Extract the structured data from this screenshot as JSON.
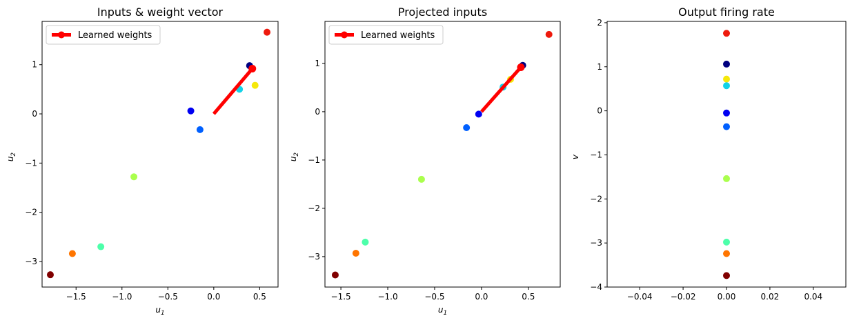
{
  "chart_data": [
    {
      "type": "scatter",
      "title": "Inputs & weight vector",
      "xlabel": "u_1",
      "ylabel": "u_2",
      "xlim": [
        -1.87,
        0.7
      ],
      "ylim": [
        -3.52,
        1.88
      ],
      "xticks": [
        -1.5,
        -1.0,
        -0.5,
        0.0,
        0.5
      ],
      "xtick_labels": [
        "−1.5",
        "−1.0",
        "−0.5",
        "0.0",
        "0.5"
      ],
      "yticks": [
        -3,
        -2,
        -1,
        0,
        1
      ],
      "ytick_labels": [
        "−3",
        "−2",
        "−1",
        "0",
        "1"
      ],
      "legend": {
        "position": "upper-left",
        "entries": [
          "Learned weights"
        ]
      },
      "series": [
        {
          "name": "Learned weights",
          "type": "line",
          "color": "#ff0000",
          "x": [
            0.0,
            0.42
          ],
          "y": [
            0.0,
            0.92
          ]
        }
      ],
      "points": [
        {
          "x": 0.58,
          "y": 1.66,
          "color": "#ee1a0d"
        },
        {
          "x": 0.39,
          "y": 0.98,
          "color": "#000080"
        },
        {
          "x": 0.45,
          "y": 0.58,
          "color": "#f5e80a"
        },
        {
          "x": 0.28,
          "y": 0.5,
          "color": "#12d2e8"
        },
        {
          "x": -0.25,
          "y": 0.06,
          "color": "#0000f2"
        },
        {
          "x": -0.15,
          "y": -0.32,
          "color": "#0060ff"
        },
        {
          "x": -0.87,
          "y": -1.28,
          "color": "#aaff4d"
        },
        {
          "x": -1.23,
          "y": -2.7,
          "color": "#4dffaa"
        },
        {
          "x": -1.54,
          "y": -2.84,
          "color": "#ff7500"
        },
        {
          "x": -1.78,
          "y": -3.27,
          "color": "#800000"
        }
      ]
    },
    {
      "type": "scatter",
      "title": "Projected inputs",
      "xlabel": "u_1",
      "ylabel": "u_2",
      "xlim": [
        -1.67,
        0.84
      ],
      "ylim": [
        -3.63,
        1.87
      ],
      "xticks": [
        -1.5,
        -1.0,
        -0.5,
        0.0,
        0.5
      ],
      "xtick_labels": [
        "−1.5",
        "−1.0",
        "−0.5",
        "0.0",
        "0.5"
      ],
      "yticks": [
        -3,
        -2,
        -1,
        0,
        1
      ],
      "ytick_labels": [
        "−3",
        "−2",
        "−1",
        "0",
        "1"
      ],
      "legend": {
        "position": "upper-left",
        "entries": [
          "Learned weights"
        ]
      },
      "series": [
        {
          "name": "Learned weights",
          "type": "line",
          "color": "#ff0000",
          "x": [
            0.0,
            0.42
          ],
          "y": [
            0.0,
            0.92
          ]
        }
      ],
      "points": [
        {
          "x": 0.72,
          "y": 1.6,
          "color": "#ee1a0d"
        },
        {
          "x": 0.44,
          "y": 0.96,
          "color": "#000080"
        },
        {
          "x": 0.31,
          "y": 0.67,
          "color": "#f5e80a"
        },
        {
          "x": 0.23,
          "y": 0.51,
          "color": "#12d2e8"
        },
        {
          "x": -0.03,
          "y": -0.05,
          "color": "#0000f2"
        },
        {
          "x": -0.16,
          "y": -0.33,
          "color": "#0060ff"
        },
        {
          "x": -0.64,
          "y": -1.4,
          "color": "#aaff4d"
        },
        {
          "x": -1.24,
          "y": -2.7,
          "color": "#4dffaa"
        },
        {
          "x": -1.34,
          "y": -2.93,
          "color": "#ff7500"
        },
        {
          "x": -1.56,
          "y": -3.38,
          "color": "#800000"
        }
      ]
    },
    {
      "type": "scatter",
      "title": "Output firing rate",
      "xlabel": "",
      "ylabel": "v",
      "xlim": [
        -0.055,
        0.055
      ],
      "ylim": [
        -4.0,
        2.03
      ],
      "xticks": [
        -0.04,
        -0.02,
        0.0,
        0.02,
        0.04
      ],
      "xtick_labels": [
        "−0.04",
        "−0.02",
        "0.00",
        "0.02",
        "0.04"
      ],
      "yticks": [
        -4,
        -3,
        -2,
        -1,
        0,
        1,
        2
      ],
      "ytick_labels": [
        "−4",
        "−3",
        "−2",
        "−1",
        "0",
        "1",
        "2"
      ],
      "points": [
        {
          "x": 0,
          "y": 1.76,
          "color": "#ee1a0d"
        },
        {
          "x": 0,
          "y": 1.06,
          "color": "#000080"
        },
        {
          "x": 0,
          "y": 0.72,
          "color": "#f5e80a"
        },
        {
          "x": 0,
          "y": 0.57,
          "color": "#12d2e8"
        },
        {
          "x": 0,
          "y": -0.05,
          "color": "#0000f2"
        },
        {
          "x": 0,
          "y": -0.36,
          "color": "#0060ff"
        },
        {
          "x": 0,
          "y": -1.54,
          "color": "#aaff4d"
        },
        {
          "x": 0,
          "y": -2.98,
          "color": "#4dffaa"
        },
        {
          "x": 0,
          "y": -3.24,
          "color": "#ff7500"
        },
        {
          "x": 0,
          "y": -3.74,
          "color": "#800000"
        }
      ]
    }
  ]
}
